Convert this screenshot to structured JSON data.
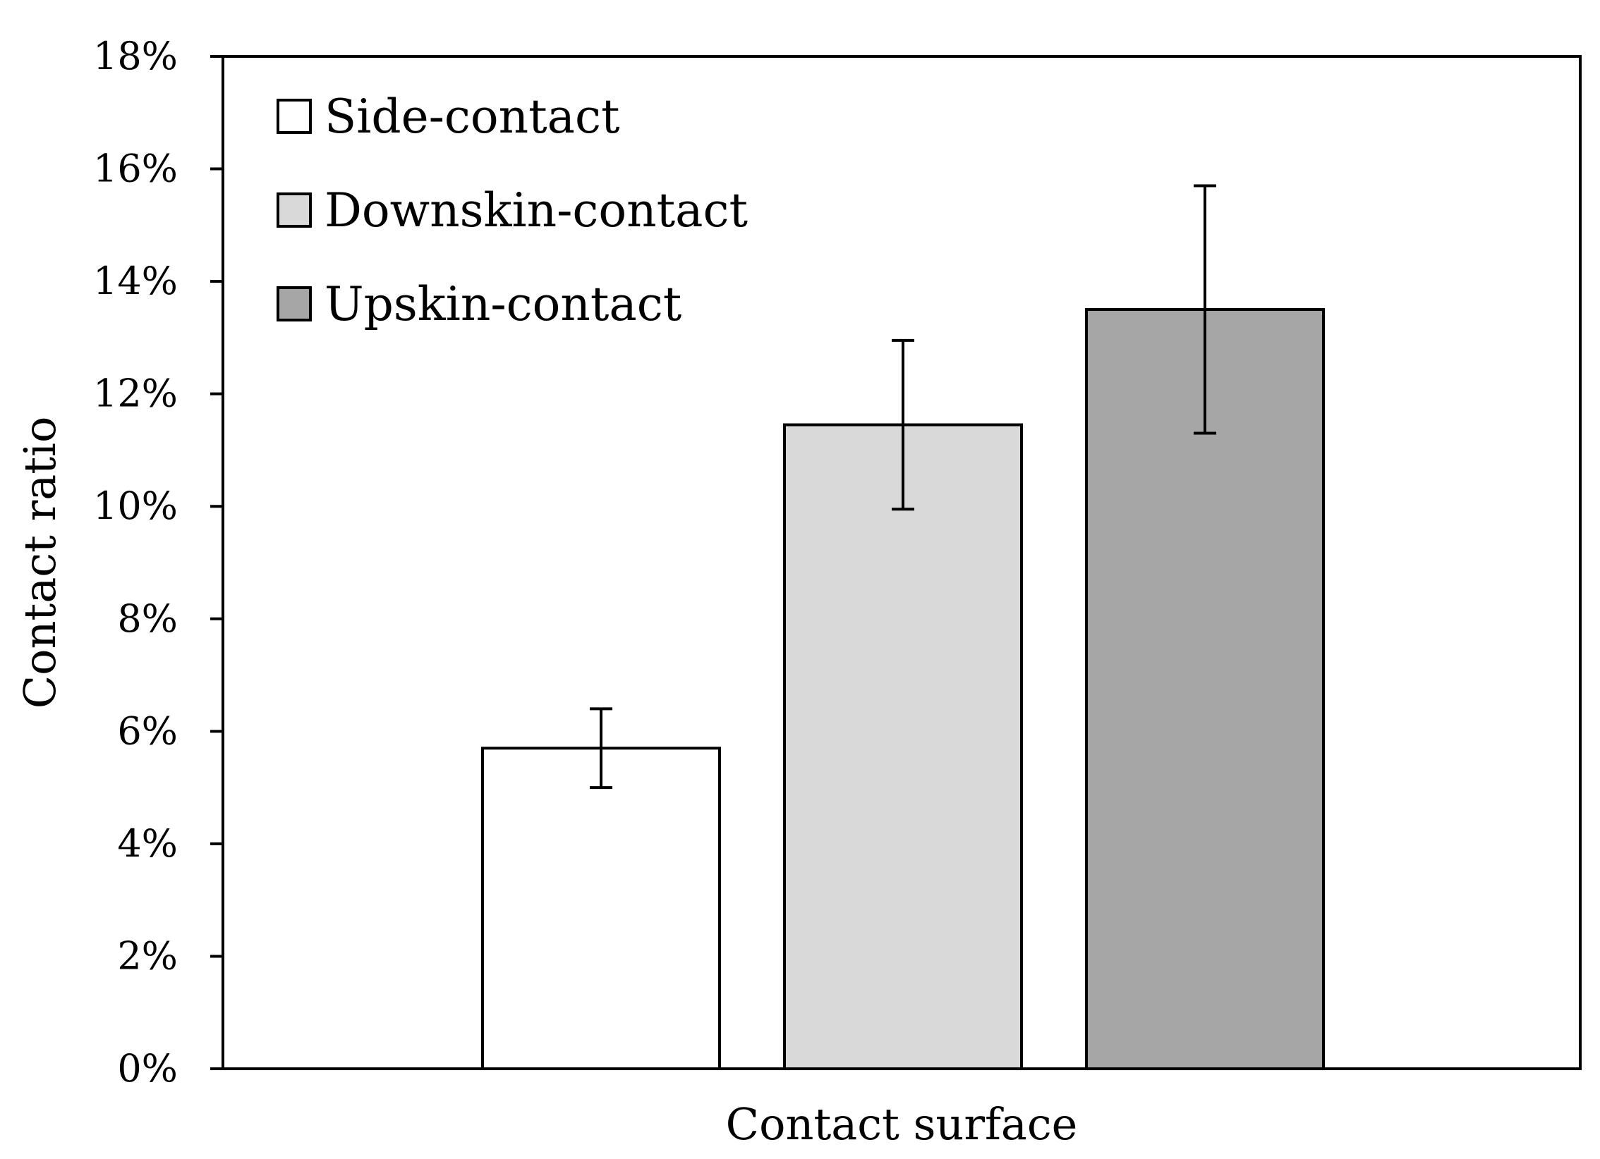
{
  "chart_data": {
    "type": "bar",
    "title": "",
    "xlabel": "Contact surface",
    "ylabel": "Contact ratio",
    "ylim": [
      0,
      0.18
    ],
    "ytick_values": [
      0,
      0.02,
      0.04,
      0.06,
      0.08,
      0.1,
      0.12,
      0.14,
      0.16,
      0.18
    ],
    "ytick_labels": [
      "0%",
      "2%",
      "4%",
      "6%",
      "8%",
      "10%",
      "12%",
      "14%",
      "16%",
      "18%"
    ],
    "grid": false,
    "legend_position": "top-left",
    "series": [
      {
        "name": "Side-contact",
        "value": 0.057,
        "error_low": 0.05,
        "error_high": 0.064,
        "color": "#ffffff"
      },
      {
        "name": "Downskin-contact",
        "value": 0.1145,
        "error_low": 0.0995,
        "error_high": 0.1295,
        "color": "#d9d9d9"
      },
      {
        "name": "Upskin-contact",
        "value": 0.135,
        "error_low": 0.113,
        "error_high": 0.157,
        "color": "#a6a6a6"
      }
    ]
  }
}
